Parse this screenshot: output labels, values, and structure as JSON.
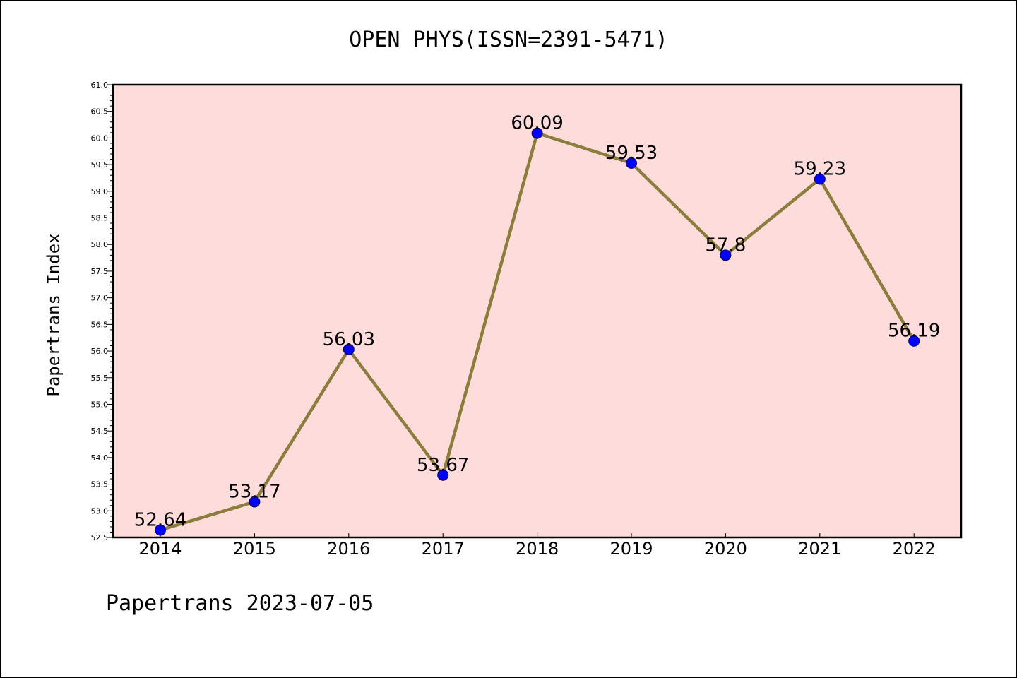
{
  "chart_data": {
    "type": "line",
    "title": "OPEN PHYS(ISSN=2391-5471)",
    "ylabel": "Papertrans Index",
    "xlabel": "",
    "footer": "Papertrans 2023-07-05",
    "categories": [
      "2014",
      "2015",
      "2016",
      "2017",
      "2018",
      "2019",
      "2020",
      "2021",
      "2022"
    ],
    "series": [
      {
        "values": [
          52.64,
          53.17,
          56.03,
          53.67,
          60.09,
          59.53,
          57.8,
          59.23,
          56.19
        ],
        "labels": [
          "52.64",
          "53.17",
          "56.03",
          "53.67",
          "60.09",
          "59.53",
          "57.8",
          "59.23",
          "56.19"
        ]
      }
    ],
    "ylim": [
      52.5,
      61.0
    ],
    "yticks": [
      "52.5",
      "53.0",
      "53.5",
      "54.0",
      "54.5",
      "55.0",
      "55.5",
      "56.0",
      "56.5",
      "57.0",
      "57.5",
      "58.0",
      "58.5",
      "59.0",
      "59.5",
      "60.0",
      "60.5",
      "61.0"
    ],
    "grid": false,
    "colors": {
      "line": "#8b7d3c",
      "marker": "#0000ff",
      "plot_background": "#ffdcdc"
    }
  }
}
